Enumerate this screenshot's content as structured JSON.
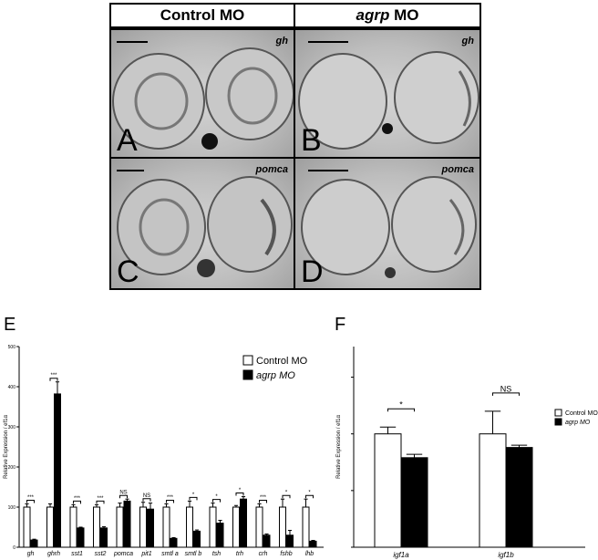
{
  "header": {
    "left": "Control MO",
    "right_italic": "agrp",
    "right_rest": " MO"
  },
  "panels": [
    {
      "letter": "A",
      "gene": "gh"
    },
    {
      "letter": "B",
      "gene": "gh"
    },
    {
      "letter": "C",
      "gene": "pomca"
    },
    {
      "letter": "D",
      "gene": "pomca"
    }
  ],
  "figure_labels": {
    "e": "E",
    "f": "F"
  },
  "colors": {
    "control": "#ffffff",
    "agrp": "#000000"
  },
  "chart_data": [
    {
      "type": "bar",
      "panel": "E",
      "ylabel": "Relative Expression / ef1α",
      "ylim": [
        0,
        500
      ],
      "yticks": [
        0,
        100,
        200,
        300,
        400,
        500
      ],
      "categories": [
        "gh",
        "ghrh",
        "sst1",
        "sst2",
        "pomca",
        "pit1",
        "smtl a",
        "smtl b",
        "tsh",
        "trh",
        "crh",
        "fshb",
        "lhb"
      ],
      "series": [
        {
          "name": "Control MO",
          "values": [
            100,
            100,
            100,
            100,
            100,
            100,
            100,
            100,
            100,
            100,
            100,
            100,
            100
          ],
          "errors": [
            8,
            8,
            6,
            6,
            10,
            12,
            8,
            15,
            10,
            4,
            8,
            20,
            20
          ]
        },
        {
          "name": "agrp MO",
          "values": [
            18,
            382,
            48,
            48,
            115,
            95,
            22,
            40,
            60,
            120,
            30,
            30,
            15
          ],
          "errors": [
            2,
            30,
            2,
            3,
            5,
            15,
            2,
            3,
            7,
            6,
            3,
            12,
            2
          ]
        }
      ],
      "significance": [
        "***",
        "***",
        "***",
        "***",
        "NS",
        "NS",
        "***",
        "*",
        "*",
        "*",
        "***",
        "*",
        "*"
      ],
      "legend": {
        "position": "top-right",
        "entries": [
          "Control MO",
          "agrp MO"
        ]
      }
    },
    {
      "type": "bar",
      "panel": "F",
      "ylabel": "Relative Expression / ef1α",
      "categories": [
        "igf1a",
        "igf1b"
      ],
      "series": [
        {
          "name": "Control MO",
          "values": [
            100,
            100
          ],
          "errors": [
            6,
            20
          ]
        },
        {
          "name": "agrp MO",
          "values": [
            79,
            88
          ],
          "errors": [
            3,
            2
          ]
        }
      ],
      "significance": [
        "*",
        "NS"
      ],
      "legend": {
        "position": "top-right",
        "entries": [
          "Control MO",
          "agrp MO"
        ]
      }
    }
  ]
}
